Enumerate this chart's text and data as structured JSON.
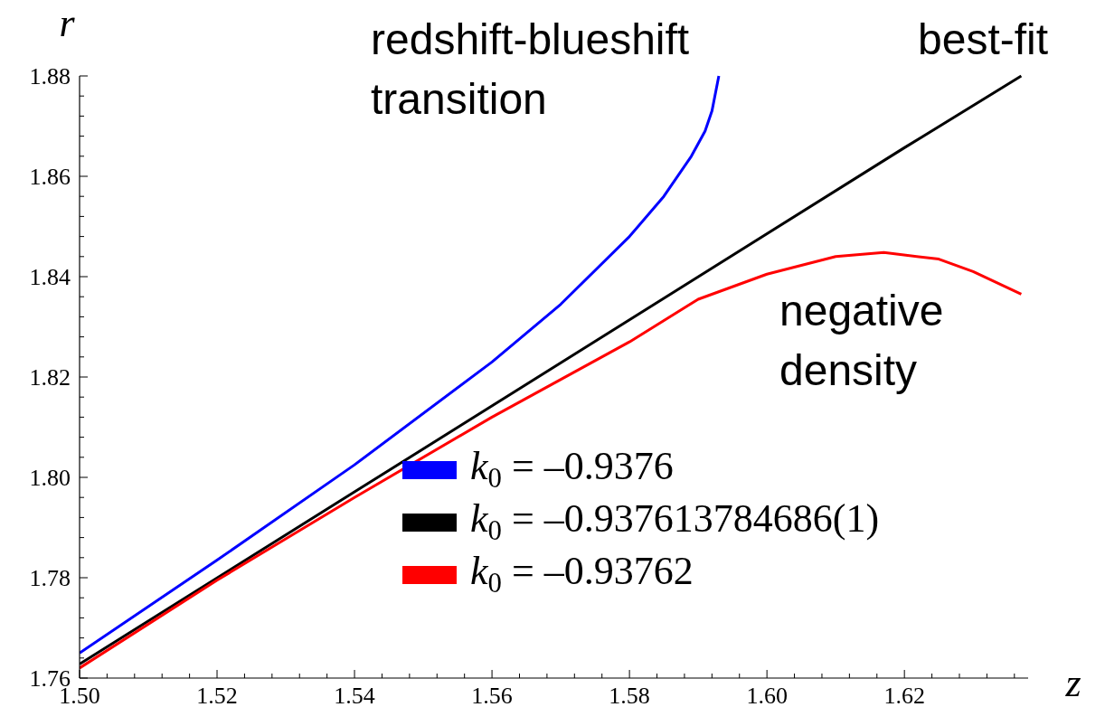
{
  "chart_data": {
    "type": "line",
    "xlabel": "z",
    "ylabel": "r",
    "xlim": [
      1.5,
      1.638
    ],
    "ylim": [
      1.76,
      1.88
    ],
    "xticks": [
      {
        "value": 1.5,
        "label": "1.50"
      },
      {
        "value": 1.504,
        "label": null
      },
      {
        "value": 1.508,
        "label": null
      },
      {
        "value": 1.512,
        "label": null
      },
      {
        "value": 1.516,
        "label": null
      },
      1.52,
      {
        "value": 1.524,
        "label": null
      },
      {
        "value": 1.528,
        "label": null
      },
      {
        "value": 1.532,
        "label": null
      },
      {
        "value": 1.536,
        "label": null
      },
      1.54,
      {
        "value": 1.544,
        "label": null
      },
      {
        "value": 1.548,
        "label": null
      },
      {
        "value": 1.552,
        "label": null
      },
      {
        "value": 1.556,
        "label": null
      },
      1.56,
      {
        "value": 1.564,
        "label": null
      },
      {
        "value": 1.568,
        "label": null
      },
      {
        "value": 1.572,
        "label": null
      },
      {
        "value": 1.576,
        "label": null
      },
      1.58,
      {
        "value": 1.584,
        "label": null
      },
      {
        "value": 1.588,
        "label": null
      },
      {
        "value": 1.592,
        "label": null
      },
      {
        "value": 1.596,
        "label": null
      },
      {
        "value": 1.6,
        "label": "1.60"
      },
      {
        "value": 1.604,
        "label": null
      },
      {
        "value": 1.608,
        "label": null
      },
      {
        "value": 1.612,
        "label": null
      },
      {
        "value": 1.616,
        "label": null
      },
      1.62,
      {
        "value": 1.624,
        "label": null
      },
      {
        "value": 1.628,
        "label": null
      },
      {
        "value": 1.632,
        "label": null
      },
      {
        "value": 1.636,
        "label": null
      }
    ],
    "yticks": [
      1.76,
      {
        "value": 1.764,
        "label": null
      },
      {
        "value": 1.768,
        "label": null
      },
      {
        "value": 1.772,
        "label": null
      },
      {
        "value": 1.776,
        "label": null
      },
      1.78,
      {
        "value": 1.784,
        "label": null
      },
      {
        "value": 1.788,
        "label": null
      },
      {
        "value": 1.792,
        "label": null
      },
      {
        "value": 1.796,
        "label": null
      },
      {
        "value": 1.8,
        "label": "1.80"
      },
      {
        "value": 1.804,
        "label": null
      },
      {
        "value": 1.808,
        "label": null
      },
      {
        "value": 1.812,
        "label": null
      },
      {
        "value": 1.816,
        "label": null
      },
      1.82,
      {
        "value": 1.824,
        "label": null
      },
      {
        "value": 1.828,
        "label": null
      },
      {
        "value": 1.832,
        "label": null
      },
      {
        "value": 1.836,
        "label": null
      },
      1.84,
      {
        "value": 1.844,
        "label": null
      },
      {
        "value": 1.848,
        "label": null
      },
      {
        "value": 1.852,
        "label": null
      },
      {
        "value": 1.856,
        "label": null
      },
      1.86,
      {
        "value": 1.864,
        "label": null
      },
      {
        "value": 1.868,
        "label": null
      },
      {
        "value": 1.872,
        "label": null
      },
      {
        "value": 1.876,
        "label": null
      },
      1.88
    ],
    "grid": false,
    "legend": "bottom right",
    "marker": "none",
    "line_style": "solid",
    "annotations": [
      "redshift-blueshift transition",
      "best-fit",
      "negative density"
    ],
    "series": [
      {
        "name": "k$_{0}$ = –0.9376",
        "color": "#0000ff",
        "x": [
          1.5,
          1.52,
          1.54,
          1.56,
          1.57,
          1.58,
          1.585,
          1.589,
          1.591,
          1.592,
          1.593
        ],
        "values": [
          1.765,
          1.7835,
          1.8025,
          1.823,
          1.8345,
          1.848,
          1.856,
          1.864,
          1.869,
          1.873,
          1.88
        ]
      },
      {
        "name": "k$_{0}$ = –0.937613784686(1)",
        "color": "#000000",
        "x": [
          1.5,
          1.54,
          1.58,
          1.62,
          1.637
        ],
        "values": [
          1.7628,
          1.7971,
          1.8314,
          1.8657,
          1.88
        ]
      },
      {
        "name": "k$_{0}$ = –0.93762",
        "color": "#ff0000",
        "x": [
          1.5,
          1.52,
          1.54,
          1.56,
          1.58,
          1.59,
          1.6,
          1.61,
          1.617,
          1.625,
          1.63,
          1.637
        ],
        "values": [
          1.762,
          1.7795,
          1.796,
          1.812,
          1.827,
          1.8355,
          1.8405,
          1.844,
          1.8448,
          1.8435,
          1.841,
          1.8365
        ]
      }
    ]
  }
}
